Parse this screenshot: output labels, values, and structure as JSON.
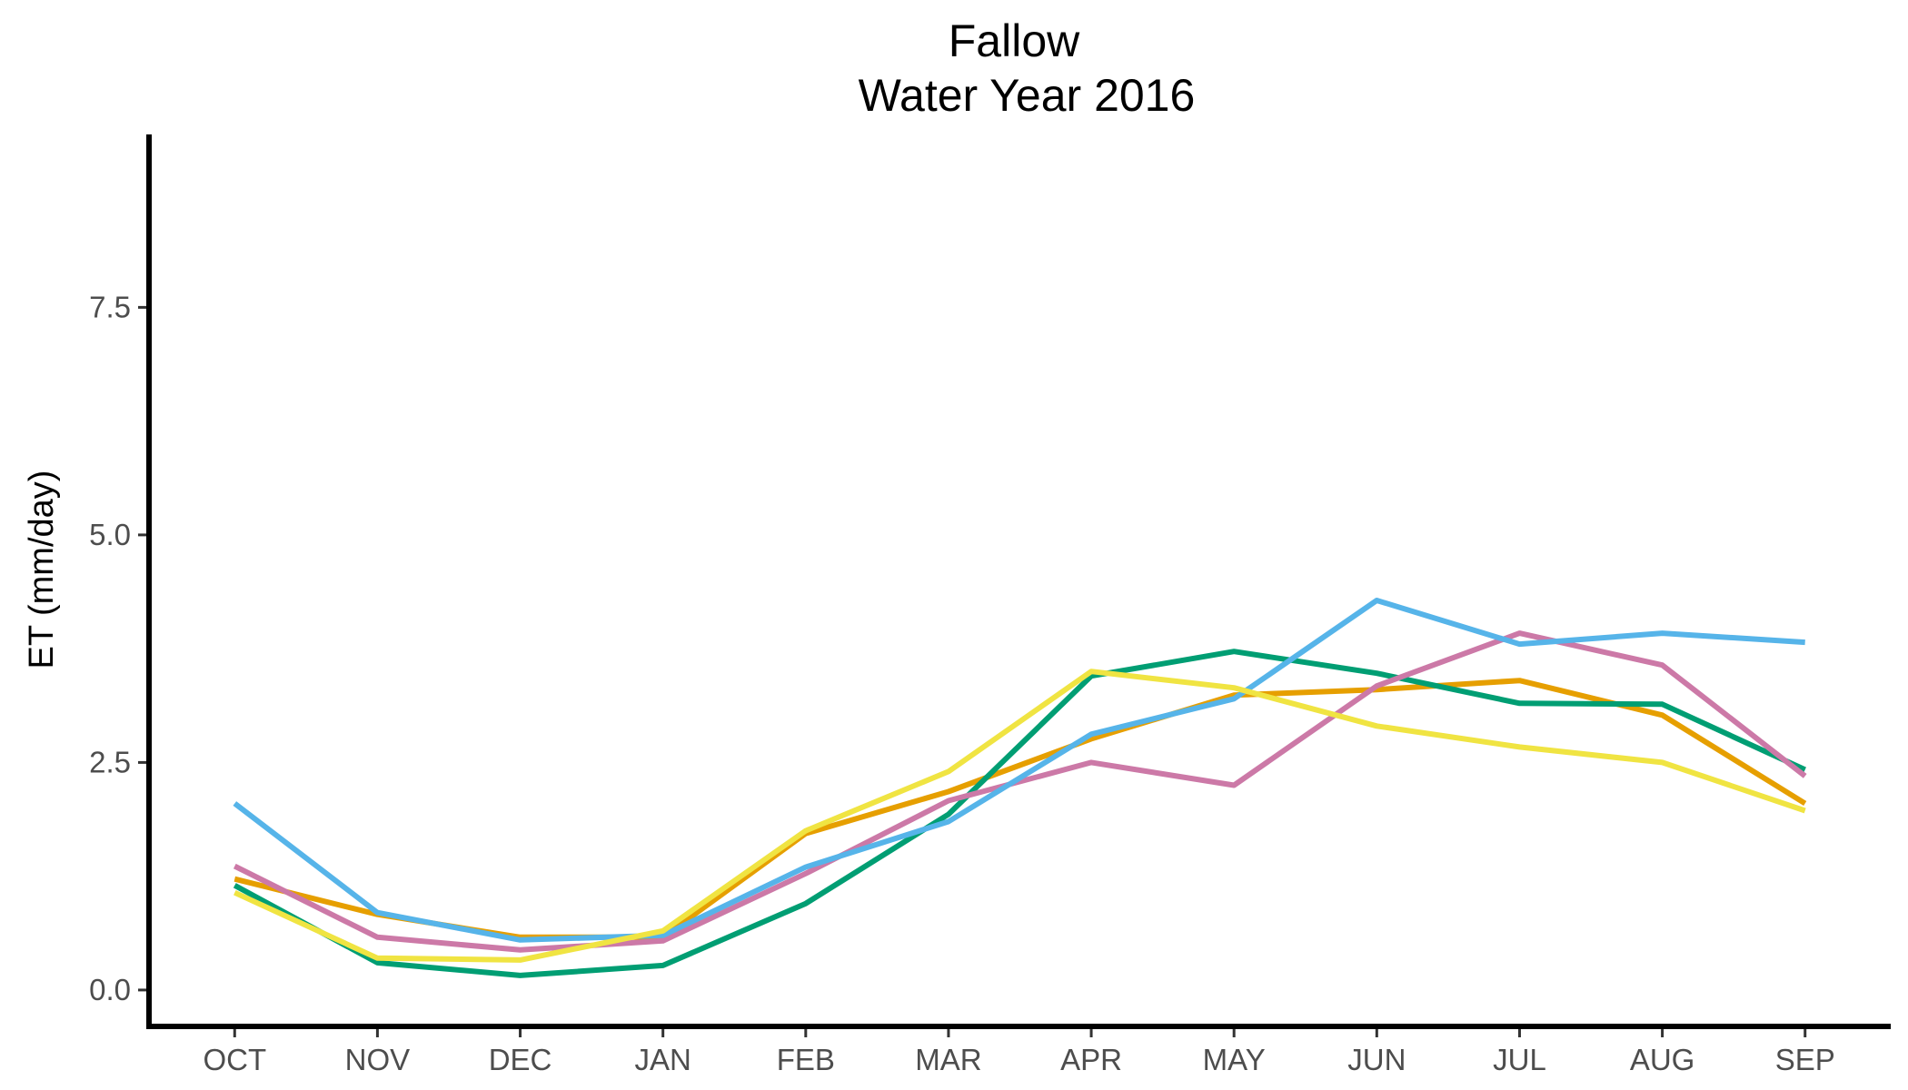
{
  "chart_data": {
    "type": "line",
    "title": "Fallow",
    "subtitle": "Water Year 2016",
    "xlabel": "",
    "ylabel": "ET (mm/day)",
    "categories": [
      "OCT",
      "NOV",
      "DEC",
      "JAN",
      "FEB",
      "MAR",
      "APR",
      "MAY",
      "JUN",
      "JUL",
      "AUG",
      "SEP"
    ],
    "ylim": [
      -0.4,
      9.4
    ],
    "yticks": [
      0.0,
      2.5,
      5.0,
      7.5
    ],
    "ytick_labels": [
      "0.0",
      "2.5",
      "5.0",
      "7.5"
    ],
    "grid": false,
    "legend": "none",
    "series": [
      {
        "color": "#E69F00",
        "values": [
          1.22,
          0.83,
          0.58,
          0.58,
          1.72,
          2.18,
          2.76,
          3.24,
          3.3,
          3.4,
          3.02,
          2.05
        ]
      },
      {
        "color": "#009E73",
        "values": [
          1.15,
          0.3,
          0.16,
          0.27,
          0.95,
          1.93,
          3.45,
          3.72,
          3.48,
          3.15,
          3.14,
          2.42
        ]
      },
      {
        "color": "#CC79A7",
        "values": [
          1.36,
          0.58,
          0.44,
          0.54,
          1.28,
          2.08,
          2.5,
          2.25,
          3.34,
          3.92,
          3.57,
          2.35
        ]
      },
      {
        "color": "#56B4E9",
        "values": [
          2.05,
          0.85,
          0.55,
          0.6,
          1.35,
          1.85,
          2.81,
          3.2,
          4.28,
          3.8,
          3.92,
          3.82
        ]
      },
      {
        "color": "#F0E442",
        "values": [
          1.07,
          0.35,
          0.33,
          0.65,
          1.75,
          2.4,
          3.5,
          3.32,
          2.9,
          2.67,
          2.5,
          1.97
        ]
      }
    ]
  }
}
